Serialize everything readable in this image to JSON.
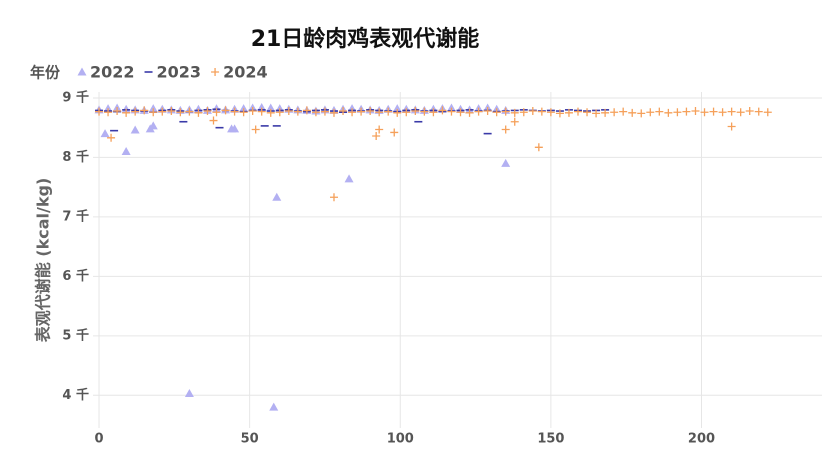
{
  "chart_data": {
    "type": "scatter",
    "title": "21日龄肉鸡表观代谢能",
    "y_label": "表观代谢能 (kcal/kg)",
    "legend_title": "年份",
    "grid": true,
    "xlim": [
      -2,
      240
    ],
    "xticks": [
      0,
      50,
      100,
      150,
      200
    ],
    "ylim": [
      3450,
      9100
    ],
    "yticks": [
      {
        "value": 4000,
        "label": "4 千"
      },
      {
        "value": 5000,
        "label": "5 千"
      },
      {
        "value": 6000,
        "label": "6 千"
      },
      {
        "value": 7000,
        "label": "7 千"
      },
      {
        "value": 8000,
        "label": "8 千"
      },
      {
        "value": 9000,
        "label": "9 千"
      }
    ],
    "series": [
      {
        "name": "2022",
        "marker": "triangle",
        "color": "#b3b0f2",
        "x": [
          0,
          3,
          6,
          9,
          12,
          15,
          18,
          21,
          24,
          27,
          30,
          33,
          36,
          39,
          42,
          45,
          48,
          51,
          54,
          57,
          60,
          63,
          66,
          69,
          72,
          75,
          78,
          81,
          84,
          87,
          90,
          93,
          96,
          99,
          102,
          105,
          108,
          111,
          114,
          117,
          120,
          123,
          126,
          129,
          132,
          135,
          2,
          9,
          12,
          17,
          18,
          30,
          44,
          45,
          58,
          59,
          83,
          135
        ],
        "values": [
          8800,
          8820,
          8830,
          8810,
          8800,
          8790,
          8820,
          8810,
          8800,
          8790,
          8800,
          8810,
          8790,
          8820,
          8800,
          8810,
          8820,
          8830,
          8840,
          8830,
          8820,
          8810,
          8800,
          8790,
          8780,
          8800,
          8790,
          8810,
          8820,
          8810,
          8800,
          8790,
          8810,
          8820,
          8810,
          8800,
          8790,
          8810,
          8820,
          8830,
          8810,
          8800,
          8820,
          8830,
          8810,
          8790,
          8400,
          8100,
          8460,
          8480,
          8530,
          4030,
          8480,
          8480,
          3800,
          7330,
          7640,
          7900
        ]
      },
      {
        "name": "2023",
        "marker": "dash",
        "color": "#3a3aa8",
        "x": [
          0,
          3,
          6,
          9,
          12,
          15,
          18,
          21,
          24,
          27,
          30,
          33,
          36,
          39,
          42,
          45,
          48,
          51,
          54,
          57,
          60,
          63,
          66,
          69,
          72,
          75,
          78,
          81,
          84,
          87,
          90,
          93,
          96,
          99,
          102,
          105,
          108,
          111,
          114,
          117,
          120,
          123,
          126,
          129,
          132,
          135,
          138,
          141,
          144,
          147,
          150,
          153,
          156,
          159,
          162,
          165,
          168,
          5,
          28,
          40,
          55,
          59,
          106,
          129
        ],
        "values": [
          8790,
          8780,
          8770,
          8800,
          8790,
          8780,
          8760,
          8790,
          8800,
          8780,
          8770,
          8790,
          8800,
          8810,
          8790,
          8780,
          8770,
          8790,
          8800,
          8780,
          8790,
          8800,
          8780,
          8770,
          8790,
          8800,
          8780,
          8760,
          8790,
          8780,
          8800,
          8790,
          8780,
          8770,
          8790,
          8800,
          8780,
          8790,
          8770,
          8780,
          8790,
          8800,
          8780,
          8790,
          8770,
          8780,
          8790,
          8800,
          8790,
          8780,
          8790,
          8780,
          8800,
          8790,
          8780,
          8790,
          8800,
          8450,
          8600,
          8500,
          8530,
          8530,
          8600,
          8400
        ]
      },
      {
        "name": "2024",
        "marker": "plus",
        "color": "#f5a05a",
        "x": [
          0,
          3,
          6,
          9,
          12,
          15,
          18,
          21,
          24,
          27,
          30,
          33,
          36,
          39,
          42,
          45,
          48,
          51,
          54,
          57,
          60,
          63,
          66,
          69,
          72,
          75,
          78,
          81,
          84,
          87,
          90,
          93,
          96,
          99,
          102,
          105,
          108,
          111,
          114,
          117,
          120,
          123,
          126,
          129,
          132,
          135,
          138,
          141,
          144,
          147,
          150,
          153,
          156,
          159,
          162,
          165,
          168,
          171,
          174,
          177,
          180,
          183,
          186,
          189,
          192,
          195,
          198,
          201,
          204,
          207,
          210,
          213,
          216,
          219,
          222,
          4,
          38,
          52,
          78,
          92,
          93,
          98,
          135,
          138,
          146,
          210
        ],
        "values": [
          8770,
          8760,
          8780,
          8750,
          8770,
          8790,
          8760,
          8770,
          8780,
          8760,
          8770,
          8750,
          8780,
          8760,
          8790,
          8770,
          8760,
          8780,
          8770,
          8750,
          8760,
          8780,
          8770,
          8790,
          8760,
          8770,
          8750,
          8780,
          8760,
          8770,
          8780,
          8760,
          8770,
          8750,
          8760,
          8780,
          8770,
          8760,
          8790,
          8770,
          8760,
          8750,
          8770,
          8780,
          8760,
          8770,
          8750,
          8760,
          8780,
          8770,
          8760,
          8740,
          8750,
          8770,
          8760,
          8740,
          8750,
          8760,
          8770,
          8750,
          8740,
          8760,
          8770,
          8750,
          8760,
          8770,
          8780,
          8760,
          8770,
          8760,
          8770,
          8760,
          8780,
          8770,
          8760,
          8330,
          8620,
          8470,
          7330,
          8360,
          8470,
          8420,
          8470,
          8600,
          8170,
          8520
        ]
      }
    ]
  }
}
